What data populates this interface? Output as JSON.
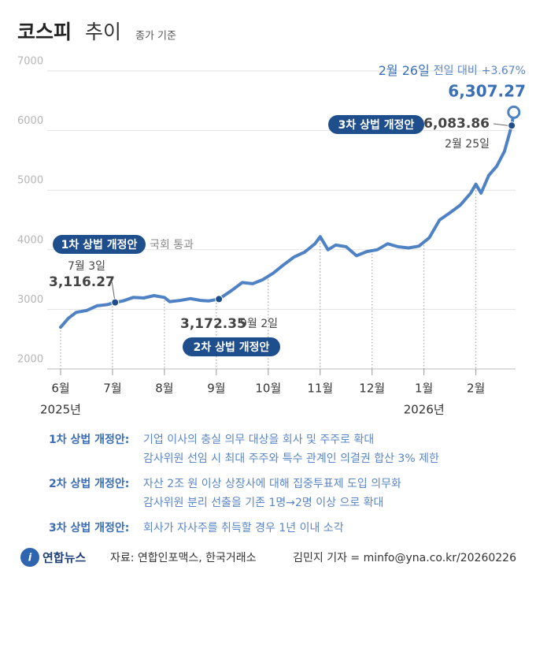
{
  "chart_data": {
    "type": "line",
    "title": "코스피",
    "title_2": "추이",
    "subtitle": "종가 기준",
    "x": [
      0,
      0.15,
      0.3,
      0.5,
      0.7,
      0.9,
      1.05,
      1.2,
      1.4,
      1.6,
      1.8,
      2.0,
      2.1,
      2.3,
      2.5,
      2.7,
      2.85,
      3.05,
      3.3,
      3.5,
      3.7,
      3.9,
      4.1,
      4.3,
      4.5,
      4.7,
      4.9,
      5.0,
      5.15,
      5.3,
      5.5,
      5.7,
      5.9,
      6.1,
      6.3,
      6.5,
      6.7,
      6.9,
      7.1,
      7.3,
      7.5,
      7.7,
      7.9,
      8.0,
      8.1,
      8.25,
      8.4,
      8.55,
      8.69,
      8.73
    ],
    "series": [
      {
        "color": "#4f82c4",
        "values": [
          2700,
          2850,
          2950,
          2980,
          3060,
          3080,
          3116.27,
          3140,
          3200,
          3190,
          3230,
          3200,
          3130,
          3150,
          3180,
          3150,
          3140,
          3172.35,
          3320,
          3450,
          3430,
          3500,
          3610,
          3750,
          3880,
          3960,
          4100,
          4220,
          4000,
          4080,
          4050,
          3900,
          3970,
          4000,
          4100,
          4050,
          4030,
          4060,
          4200,
          4500,
          4620,
          4750,
          4950,
          5100,
          4950,
          5250,
          5400,
          5650,
          6083.86,
          6307.27
        ]
      }
    ],
    "xlim": [
      0,
      8.9
    ],
    "xticks": [
      {
        "value": 0,
        "label": "6월"
      },
      {
        "value": 1,
        "label": "7월"
      },
      {
        "value": 2,
        "label": "8월"
      },
      {
        "value": 3,
        "label": "9월"
      },
      {
        "value": 4,
        "label": "10월"
      },
      {
        "value": 5,
        "label": "11월"
      },
      {
        "value": 6,
        "label": "12월"
      },
      {
        "value": 7,
        "label": "1월"
      },
      {
        "value": 8,
        "label": "2월"
      }
    ],
    "year_labels": [
      {
        "x": 0,
        "label": "2025년"
      },
      {
        "x": 7,
        "label": "2026년"
      }
    ],
    "ylim": [
      2000,
      7000
    ],
    "yticks": [
      2000,
      3000,
      4000,
      5000,
      6000,
      7000
    ],
    "grid": true,
    "highlights": [
      {
        "x": 1.05,
        "value": 3116.27,
        "value_label": "3,116.27",
        "date": "7월 3일",
        "event": "1차 상법 개정안",
        "event_note": "국회 통과"
      },
      {
        "x": 3.05,
        "value": 3172.35,
        "value_label": "3,172.35",
        "date": "9월 2일",
        "event": "2차 상법 개정안"
      },
      {
        "x": 8.69,
        "value": 6083.86,
        "value_label": "6,083.86",
        "date": "2월 25일",
        "event": "3차 상법 개정안"
      },
      {
        "x": 8.73,
        "value": 6307.27,
        "value_label": "6,307.27",
        "date": "2월 26일",
        "change_prefix": "전일 대비",
        "change": {
          "value": 3.67,
          "label": "+3.67%"
        }
      }
    ]
  },
  "notes": [
    {
      "label": "1차 상법 개정안:",
      "lines": [
        "기업 이사의 충실 의무 대상을 회사 및 주주로 확대",
        "감사위원 선임 시 최대 주주와 특수 관계인 의결권  합산 3% 제한"
      ]
    },
    {
      "label": "2차 상법 개정안:",
      "lines": [
        "자산 2조 원 이상 상장사에 대해 집중투표제 도입 의무화",
        "감사위원 분리 선출을 기존 1명→2명 이상 으로 확대"
      ]
    },
    {
      "label": "3차 상법 개정안:",
      "lines": [
        "회사가 자사주를 취득할 경우 1년 이내 소각"
      ]
    }
  ],
  "footer": {
    "logo": "연합뉴스",
    "source": "자료: 연합인포맥스, 한국거래소",
    "credit": "김민지 기자 = minfo@yna.co.kr/20260226"
  }
}
